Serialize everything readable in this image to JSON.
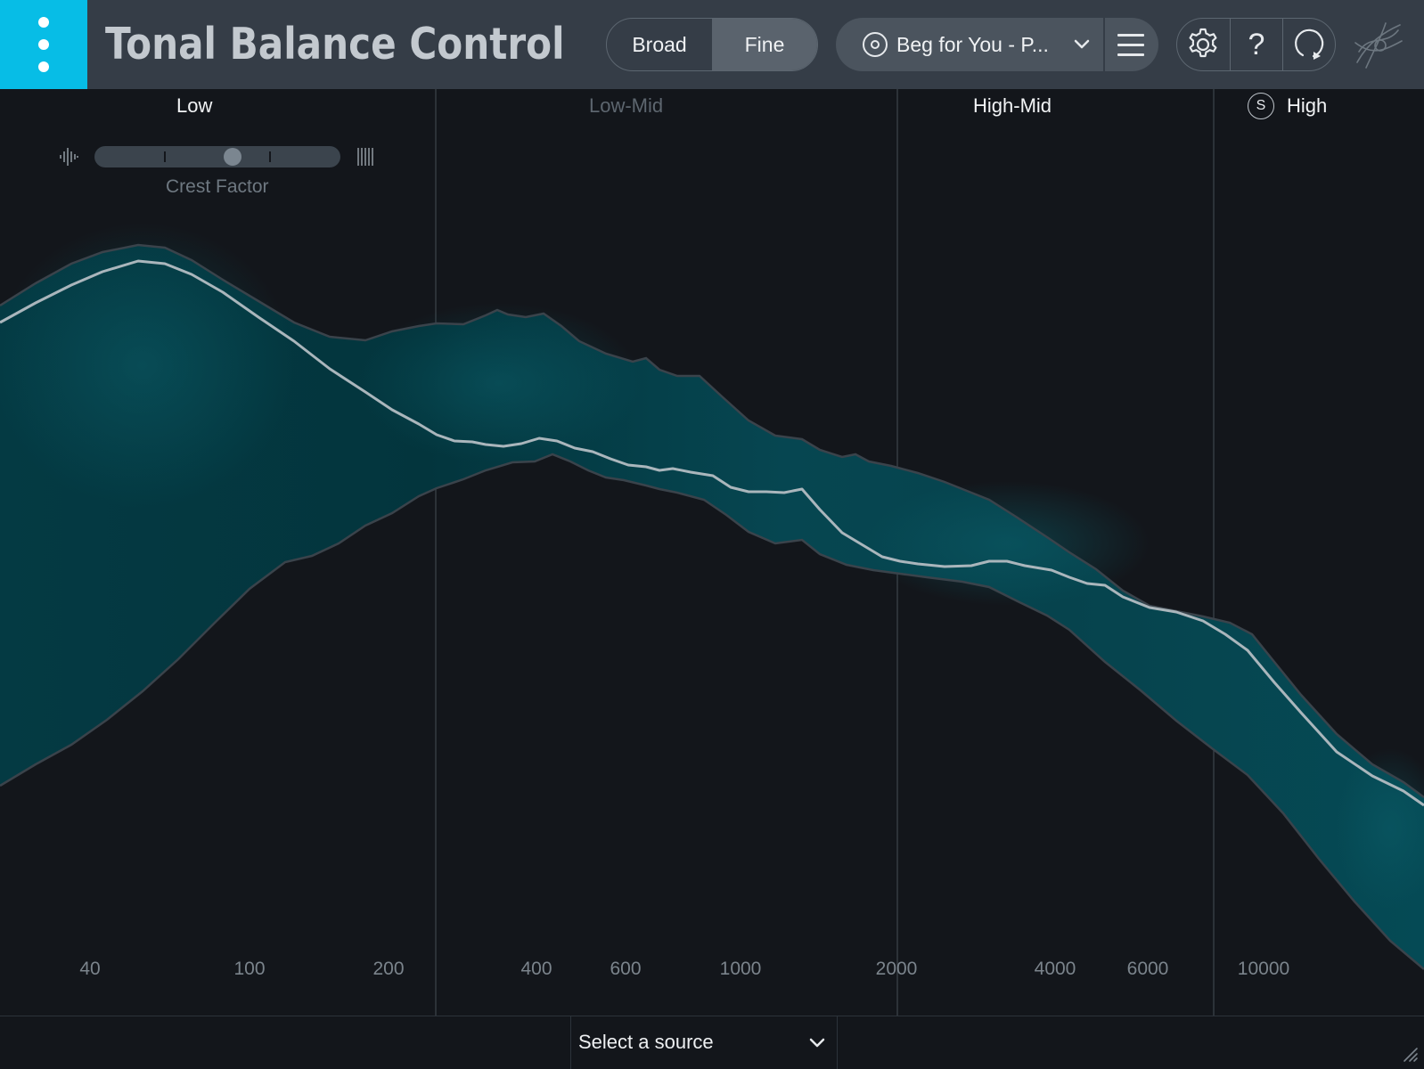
{
  "app": {
    "title": "Tonal Balance Control"
  },
  "header": {
    "view_modes": [
      {
        "label": "Broad",
        "active": false
      },
      {
        "label": "Fine",
        "active": true
      }
    ],
    "target": {
      "label": "Beg for You - P...",
      "icon": "target-icon"
    },
    "icons": {
      "menu": "kebab-menu-icon",
      "target_menu": "hamburger-menu-icon",
      "settings": "gear-icon",
      "help": "help-icon",
      "loop": "loop-icon",
      "logo": "izotope-logo"
    },
    "help_glyph": "?"
  },
  "graph": {
    "bands": [
      {
        "label": "Low",
        "active": true
      },
      {
        "label": "Low-Mid",
        "active": false
      },
      {
        "label": "High-Mid",
        "active": true
      },
      {
        "label": "High",
        "active": true,
        "solo": "S"
      }
    ],
    "crest_factor": {
      "label": "Crest Factor",
      "value": 0.56
    },
    "freq_axis": [
      "40",
      "100",
      "200",
      "400",
      "600",
      "1000",
      "2000",
      "4000",
      "6000",
      "10000"
    ]
  },
  "footer": {
    "source": {
      "label": "Select a source"
    }
  },
  "colors": {
    "accent": "#07bde6",
    "band_fill": "#04464f",
    "curve": "#aab6bc"
  }
}
